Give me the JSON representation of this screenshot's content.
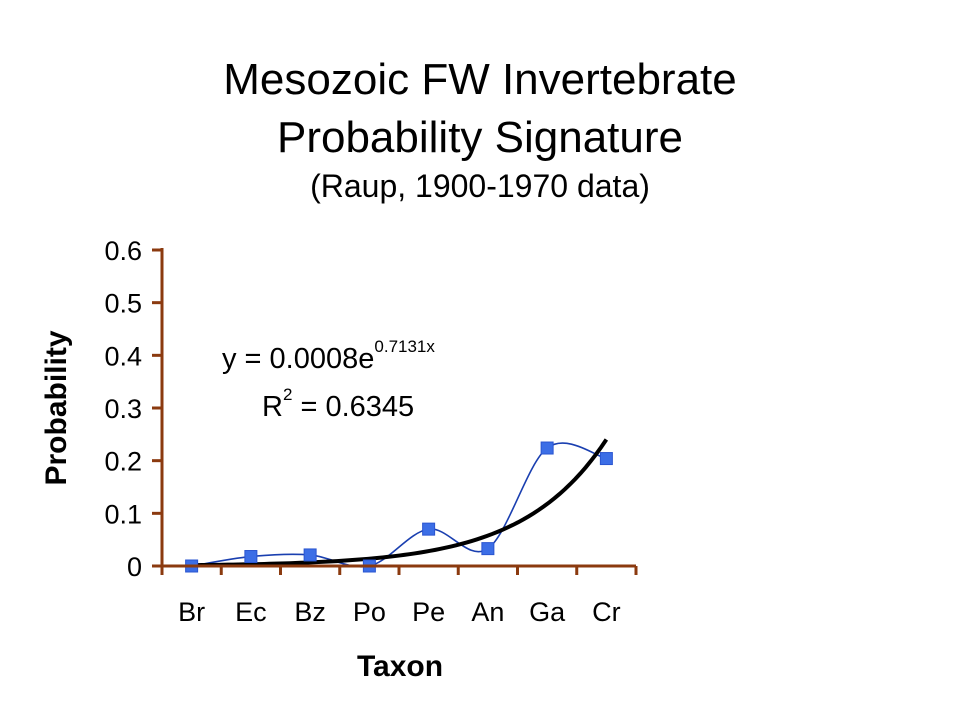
{
  "title_line1": "Mesozoic FW Invertebrate",
  "title_line2": "Probability Signature",
  "subtitle": "(Raup, 1900-1970 data)",
  "chart_data": {
    "type": "line",
    "xlabel": "Taxon",
    "ylabel": "Probability",
    "categories": [
      "Br",
      "Ec",
      "Bz",
      "Po",
      "Pe",
      "An",
      "Ga",
      "Cr"
    ],
    "series": [
      {
        "values": [
          0.0,
          0.018,
          0.021,
          0.0,
          0.07,
          0.033,
          0.224,
          0.204
        ],
        "color": "#3c6ee6",
        "marker": "square",
        "line": "smooth"
      }
    ],
    "trendline": {
      "type": "exponential",
      "a": 0.0008,
      "b": 0.7131,
      "color": "#000000",
      "equation_base": "y = 0.0008e",
      "equation_exp": "0.7131x",
      "r2_base": "R",
      "r2_sup": "2",
      "r2_value": " = 0.6345"
    },
    "yticks": [
      "0",
      "0.1",
      "0.2",
      "0.3",
      "0.4",
      "0.5",
      "0.6"
    ],
    "ylim": [
      0,
      0.6
    ],
    "grid": false,
    "legend": "none",
    "axis_color": "#8b3a0f"
  }
}
